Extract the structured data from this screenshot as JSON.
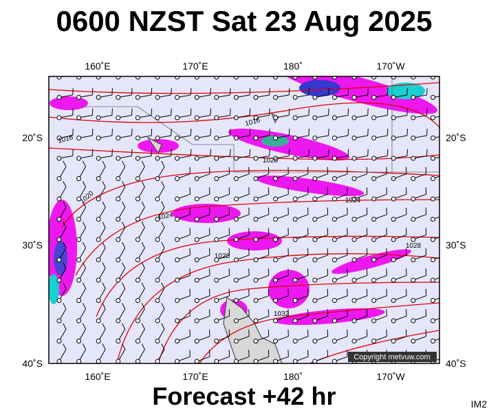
{
  "header": {
    "title": "0600 NZST Sat 23 Aug 2025"
  },
  "footer": {
    "forecast": "Forecast +42 hr",
    "image_id": "IM2"
  },
  "map": {
    "lon_labels": [
      "160˚E",
      "170˚E",
      "180˚",
      "170˚W"
    ],
    "lat_labels": [
      "20˚S",
      "30˚S",
      "40˚S"
    ],
    "isobar_labels": [
      "1016",
      "1016",
      "1020",
      "1020",
      "1024",
      "1024",
      "1028",
      "1028",
      "1032"
    ],
    "copyright": "Copyright metvuw.com"
  }
}
